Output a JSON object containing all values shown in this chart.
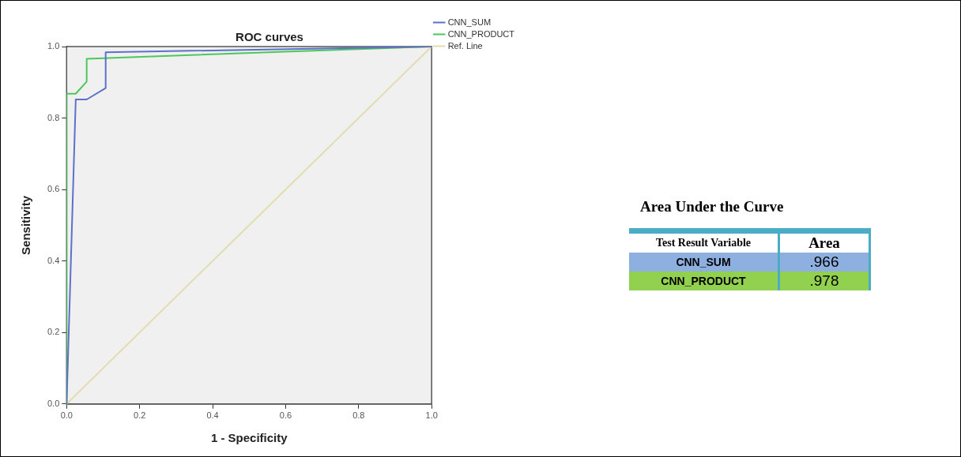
{
  "chart_data": [
    {
      "type": "line",
      "title": "ROC curves",
      "xlabel": "1 - Specificity",
      "ylabel": "Sensitivity",
      "xlim": [
        0,
        1
      ],
      "ylim": [
        0,
        1
      ],
      "xticks": [
        {
          "value": 0,
          "label": "0.0"
        },
        {
          "value": 0.2,
          "label": "0.2"
        },
        {
          "value": 0.4,
          "label": "0.4"
        },
        {
          "value": 0.6,
          "label": "0.6"
        },
        {
          "value": 0.8,
          "label": "0.8"
        },
        {
          "value": 1,
          "label": "1.0"
        }
      ],
      "yticks": [
        {
          "value": 0,
          "label": "0.0"
        },
        {
          "value": 0.2,
          "label": "0.2"
        },
        {
          "value": 0.4,
          "label": "0.4"
        },
        {
          "value": 0.6,
          "label": "0.6"
        },
        {
          "value": 0.8,
          "label": "0.8"
        },
        {
          "value": 1,
          "label": "1.0"
        }
      ],
      "grid": false,
      "legend": "top right",
      "marker": "none",
      "line_style": "solid",
      "series": [
        {
          "name": "CNN_SUM",
          "color": "#5b72c8",
          "x": [
            0,
            0.025,
            0.055,
            0.107,
            0.107,
            1
          ],
          "values": [
            0,
            0.852,
            0.852,
            0.884,
            0.984,
            1
          ]
        },
        {
          "name": "CNN_PRODUCT",
          "color": "#4cc85a",
          "x": [
            0,
            0,
            0.025,
            0.055,
            0.055,
            1
          ],
          "values": [
            0,
            0.868,
            0.868,
            0.902,
            0.966,
            1
          ]
        },
        {
          "name": "Ref. Line",
          "color": "#e2dcb0",
          "x": [
            0,
            1
          ],
          "values": [
            0,
            1
          ]
        }
      ]
    },
    {
      "type": "other",
      "title": "Area Under the Curve",
      "annotations": [
        "Test Result Variable",
        "Area"
      ],
      "categories": [
        "CNN_SUM",
        "CNN_PRODUCT"
      ],
      "value_labels": [
        ".966",
        ".978"
      ],
      "colors": [
        "#8db0e0",
        "#92d050"
      ]
    }
  ]
}
